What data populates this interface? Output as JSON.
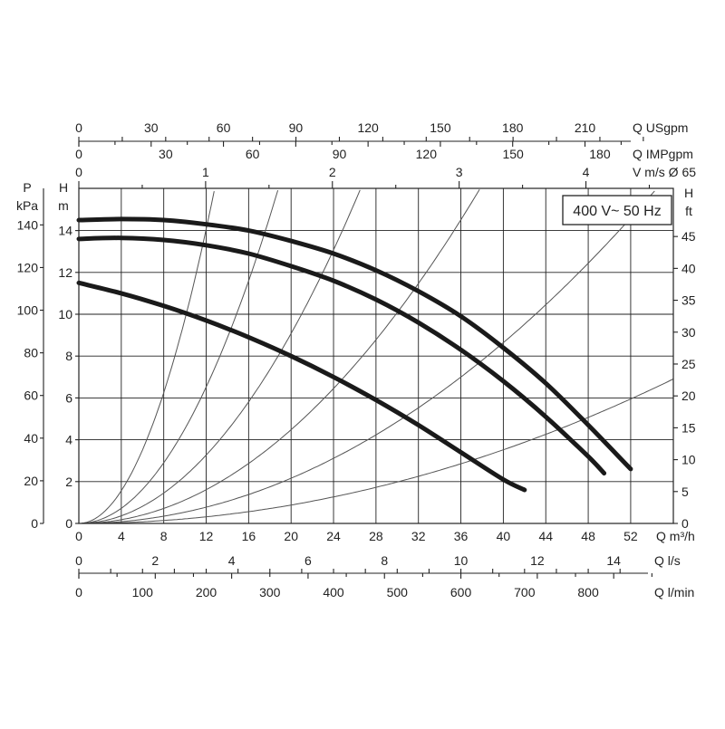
{
  "chart_data": {
    "type": "line",
    "title_box": "400 V~ 50 Hz",
    "x_main": {
      "label": "Q m³/h",
      "ticks": [
        0,
        4,
        8,
        12,
        16,
        20,
        24,
        28,
        32,
        36,
        40,
        44,
        48,
        52
      ],
      "range": [
        0,
        56
      ]
    },
    "y_head_m": {
      "label_top": "H",
      "label_bottom": "m",
      "ticks": [
        0,
        2,
        4,
        6,
        8,
        10,
        12,
        14
      ],
      "range": [
        0,
        16
      ]
    },
    "y_pressure": {
      "label_top": "P",
      "label_bottom": "kPa",
      "ticks": [
        0,
        20,
        40,
        60,
        80,
        100,
        120,
        140
      ]
    },
    "y_head_ft": {
      "label_top": "H",
      "label_bottom": "ft",
      "ticks": [
        0,
        5,
        10,
        15,
        20,
        25,
        30,
        35,
        40,
        45
      ]
    },
    "top_axes": [
      {
        "label": "Q USgpm",
        "ticks": [
          0,
          30,
          60,
          90,
          120,
          150,
          180,
          210
        ]
      },
      {
        "label": "Q IMPgpm",
        "ticks": [
          0,
          30,
          60,
          90,
          120,
          150,
          180
        ]
      },
      {
        "label": "V m/s Ø 65",
        "ticks": [
          0,
          1,
          2,
          3,
          4
        ]
      }
    ],
    "bottom_axes": [
      {
        "label": "Q l/s",
        "ticks": [
          0,
          2,
          4,
          6,
          8,
          10,
          12,
          14
        ]
      },
      {
        "label": "Q l/min",
        "ticks": [
          0,
          100,
          200,
          300,
          400,
          500,
          600,
          700,
          800
        ]
      }
    ],
    "series": [
      {
        "x": [
          0,
          4,
          8,
          12,
          16,
          20,
          24,
          28,
          32,
          36,
          40,
          44,
          48,
          52
        ],
        "y": [
          14.5,
          14.55,
          14.5,
          14.3,
          14.0,
          13.5,
          12.9,
          12.1,
          11.1,
          9.9,
          8.4,
          6.7,
          4.7,
          2.6
        ]
      },
      {
        "x": [
          0,
          4,
          8,
          12,
          16,
          20,
          24,
          28,
          32,
          36,
          40,
          44,
          48,
          49.5
        ],
        "y": [
          13.6,
          13.65,
          13.55,
          13.3,
          12.9,
          12.3,
          11.6,
          10.7,
          9.6,
          8.3,
          6.8,
          5.1,
          3.2,
          2.4
        ]
      },
      {
        "x": [
          0,
          4,
          8,
          12,
          16,
          20,
          24,
          28,
          32,
          36,
          40,
          42
        ],
        "y": [
          11.5,
          11.0,
          10.4,
          9.7,
          8.9,
          8.0,
          7.0,
          5.9,
          4.7,
          3.4,
          2.1,
          1.6
        ]
      }
    ],
    "system_curves_k": [
      0.0977,
      0.0453,
      0.0227,
      0.0112,
      0.0054,
      0.0022
    ],
    "grid": true
  }
}
